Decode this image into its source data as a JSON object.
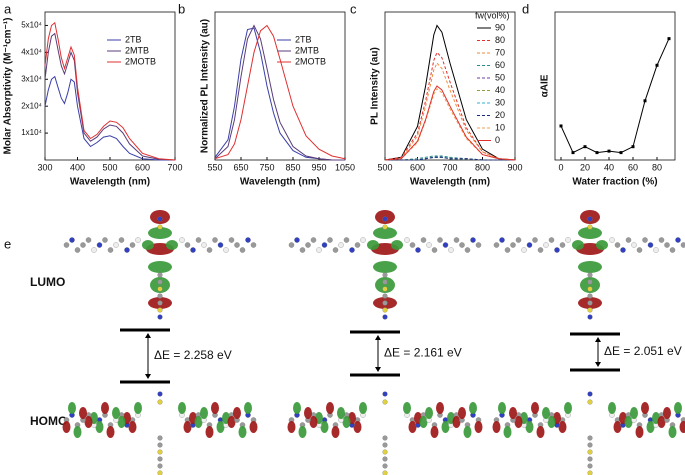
{
  "chart_data": [
    {
      "type": "line",
      "panel": "a",
      "xlabel": "Wavelength (nm)",
      "ylabel": "Molar Absorptivity (M⁻¹cm⁻¹)",
      "x": [
        300,
        310,
        320,
        330,
        340,
        350,
        360,
        370,
        380,
        390,
        400,
        420,
        440,
        460,
        480,
        500,
        520,
        540,
        560,
        600,
        650,
        700
      ],
      "series": [
        {
          "name": "2TB",
          "color": "#3b3fa8",
          "values": [
            20000,
            26000,
            30000,
            31000,
            27000,
            23000,
            21000,
            25000,
            30000,
            29000,
            20000,
            8000,
            5000,
            6500,
            8500,
            9000,
            8000,
            5000,
            2500,
            500,
            0,
            0
          ]
        },
        {
          "name": "2MTB",
          "color": "#5a3c78",
          "values": [
            30000,
            40000,
            46000,
            47000,
            41000,
            35000,
            32000,
            36000,
            40000,
            37000,
            25000,
            10000,
            7000,
            8500,
            11500,
            13000,
            12500,
            10000,
            6000,
            1500,
            300,
            0
          ]
        },
        {
          "name": "2MOTB",
          "color": "#e03030",
          "values": [
            35000,
            45000,
            50000,
            51000,
            45000,
            38000,
            34000,
            38000,
            42000,
            39000,
            27000,
            11000,
            8000,
            9500,
            12500,
            14500,
            14000,
            12000,
            8000,
            2500,
            500,
            0
          ]
        }
      ],
      "xlim": [
        300,
        700
      ],
      "xticks": [
        300,
        400,
        500,
        600,
        700
      ],
      "ylim": [
        0,
        55000
      ],
      "yticks": [
        {
          "value": 10000,
          "label": "1x10⁴"
        },
        {
          "value": 20000,
          "label": "2x10⁴"
        },
        {
          "value": 30000,
          "label": "3x10⁴"
        },
        {
          "value": 40000,
          "label": "4x10⁴"
        },
        {
          "value": 50000,
          "label": "5x10⁴"
        }
      ]
    },
    {
      "type": "line",
      "panel": "b",
      "xlabel": "Wavelength (nm)",
      "ylabel": "Normalized PL Intensity (au)",
      "x": [
        550,
        600,
        625,
        650,
        675,
        700,
        725,
        750,
        775,
        800,
        850,
        900,
        950,
        1000,
        1050
      ],
      "series": [
        {
          "name": "2TB",
          "color": "#3b3fa8",
          "values": [
            0.02,
            0.15,
            0.4,
            0.75,
            0.97,
            0.98,
            0.8,
            0.55,
            0.35,
            0.2,
            0.07,
            0.02,
            0.01,
            0,
            0
          ]
        },
        {
          "name": "2MTB",
          "color": "#5a3c78",
          "values": [
            0.01,
            0.1,
            0.3,
            0.62,
            0.9,
            1.0,
            0.9,
            0.68,
            0.45,
            0.28,
            0.1,
            0.03,
            0.01,
            0,
            0
          ]
        },
        {
          "name": "2MOTB",
          "color": "#e03030",
          "values": [
            0.01,
            0.04,
            0.12,
            0.3,
            0.55,
            0.8,
            0.96,
            1.0,
            0.92,
            0.75,
            0.4,
            0.18,
            0.08,
            0.03,
            0.01
          ]
        }
      ],
      "xlim": [
        550,
        1050
      ],
      "xticks": [
        550,
        650,
        750,
        850,
        950,
        1050
      ],
      "ylim": [
        0,
        1.1
      ]
    },
    {
      "type": "line",
      "panel": "c",
      "xlabel": "Wavelength (nm)",
      "ylabel": "PL Intensity (au)",
      "legend_title": "fw(vol%)",
      "x": [
        500,
        550,
        600,
        625,
        650,
        660,
        675,
        700,
        750,
        800,
        850,
        900
      ],
      "series": [
        {
          "name": "90",
          "color": "#000000",
          "values": [
            0,
            0.02,
            0.25,
            0.55,
            0.93,
            1,
            0.95,
            0.72,
            0.3,
            0.08,
            0.01,
            0
          ]
        },
        {
          "name": "80",
          "color": "#e03030",
          "dashed": true,
          "values": [
            0,
            0.02,
            0.2,
            0.44,
            0.74,
            0.8,
            0.76,
            0.58,
            0.24,
            0.06,
            0.01,
            0
          ]
        },
        {
          "name": "70",
          "color": "#f08a3c",
          "dashed": true,
          "values": [
            0,
            0.01,
            0.18,
            0.4,
            0.67,
            0.72,
            0.68,
            0.52,
            0.22,
            0.06,
            0.01,
            0
          ]
        },
        {
          "name": "60",
          "color": "#2a8c8c",
          "dashed": true,
          "values": [
            0,
            0,
            0.01,
            0.02,
            0.03,
            0.03,
            0.03,
            0.02,
            0.01,
            0,
            0,
            0
          ]
        },
        {
          "name": "50",
          "color": "#6b3fa0",
          "dashed": true,
          "values": [
            0,
            0,
            0,
            0.01,
            0.02,
            0.02,
            0.02,
            0.01,
            0.01,
            0,
            0,
            0
          ]
        },
        {
          "name": "40",
          "color": "#8aa040",
          "dashed": true,
          "values": [
            0,
            0,
            0,
            0.01,
            0.02,
            0.02,
            0.02,
            0.01,
            0.01,
            0,
            0,
            0
          ]
        },
        {
          "name": "30",
          "color": "#30b0d0",
          "dashed": true,
          "values": [
            0,
            0,
            0,
            0.01,
            0.02,
            0.02,
            0.02,
            0.01,
            0.01,
            0,
            0,
            0
          ]
        },
        {
          "name": "20",
          "color": "#1a2a80",
          "dashed": true,
          "values": [
            0,
            0,
            0,
            0.01,
            0.02,
            0.02,
            0.02,
            0.01,
            0.01,
            0,
            0,
            0
          ]
        },
        {
          "name": "10",
          "color": "#f0a050",
          "dashed": true,
          "values": [
            0,
            0.01,
            0.13,
            0.29,
            0.49,
            0.53,
            0.5,
            0.38,
            0.16,
            0.04,
            0.01,
            0
          ]
        },
        {
          "name": "0",
          "color": "#e03030",
          "values": [
            0,
            0.01,
            0.14,
            0.3,
            0.51,
            0.55,
            0.52,
            0.4,
            0.17,
            0.04,
            0.01,
            0
          ]
        }
      ],
      "xlim": [
        500,
        900
      ],
      "xticks": [
        500,
        600,
        700,
        800,
        900
      ],
      "ylim": [
        0,
        1.1
      ]
    },
    {
      "type": "line",
      "panel": "d",
      "xlabel": "Water fraction (%)",
      "ylabel": "αAIE",
      "markers": true,
      "x": [
        0,
        10,
        20,
        30,
        40,
        50,
        60,
        70,
        80,
        90
      ],
      "series": [
        {
          "color": "#000000",
          "values": [
            2.3,
            0.5,
            0.9,
            0.5,
            0.6,
            0.5,
            0.9,
            4,
            6.4,
            8.2
          ]
        }
      ],
      "xlim": [
        -5,
        95
      ],
      "xticks": [
        0,
        20,
        40,
        60,
        80
      ],
      "ylim": [
        0,
        10
      ]
    }
  ],
  "figure_e": {
    "label": "e",
    "lumo": "LUMO",
    "homo": "HOMO",
    "gaps": [
      "ΔE = 2.258 eV",
      "ΔE = 2.161 eV",
      "ΔE = 2.051 eV"
    ]
  }
}
